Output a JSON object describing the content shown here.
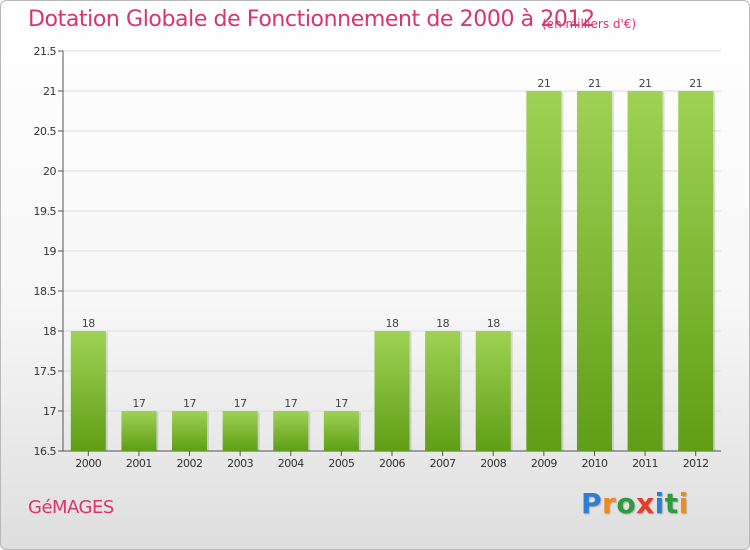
{
  "title": "Dotation Globale de Fonctionnement de 2000 à 2012",
  "unit": "(en milliers d'€)",
  "commune": "GéMAGES",
  "logo": {
    "letters": [
      "P",
      "r",
      "o",
      "x",
      "i",
      "t",
      "i"
    ],
    "colors": [
      "#2e7fd0",
      "#f08a1c",
      "#2e9b3f",
      "#e23c2b",
      "#2e7fd0",
      "#2e9b3f",
      "#f08a1c"
    ]
  },
  "colors": {
    "bar_light": "#9fd254",
    "bar_dark": "#5f9e16",
    "accent": "#d9346c"
  },
  "chart_data": {
    "type": "bar",
    "categories": [
      "2000",
      "2001",
      "2002",
      "2003",
      "2004",
      "2005",
      "2006",
      "2007",
      "2008",
      "2009",
      "2010",
      "2011",
      "2012"
    ],
    "values": [
      18,
      17,
      17,
      17,
      17,
      17,
      18,
      18,
      18,
      21,
      21,
      21,
      21
    ],
    "value_labels": [
      "18",
      "17",
      "17",
      "17",
      "17",
      "17",
      "18",
      "18",
      "18",
      "21",
      "21",
      "21",
      "21"
    ],
    "title": "Dotation Globale de Fonctionnement de 2000 à 2012",
    "xlabel": "",
    "ylabel": "",
    "ylim": [
      16.5,
      21.5
    ],
    "yticks": [
      "16.5",
      "17",
      "17.5",
      "18",
      "18.5",
      "19",
      "19.5",
      "20",
      "20.5",
      "21",
      "21.5"
    ],
    "grid": true,
    "legend": "none"
  }
}
